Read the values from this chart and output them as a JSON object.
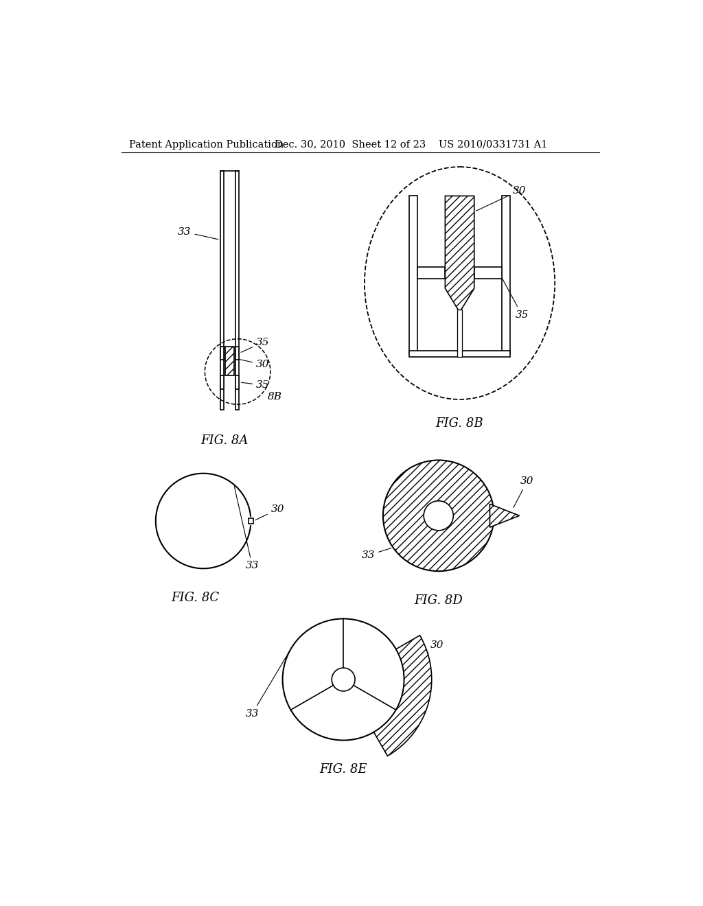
{
  "bg_color": "#ffffff",
  "header_left": "Patent Application Publication",
  "header_mid": "Dec. 30, 2010  Sheet 12 of 23",
  "header_right": "US 2010/0331731 A1",
  "header_fontsize": 10.5,
  "fig_label_fontsize": 13,
  "annotation_fontsize": 11,
  "hatch_pattern": "///",
  "line_color": "#000000"
}
